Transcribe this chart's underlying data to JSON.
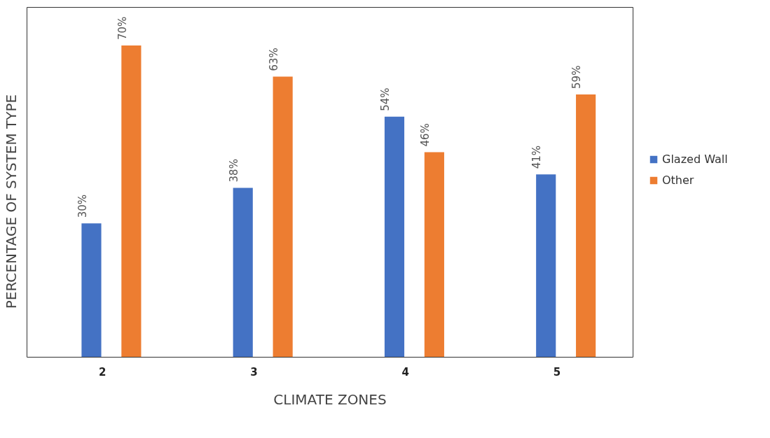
{
  "chart_data": {
    "type": "bar",
    "xlabel": "CLIMATE ZONES",
    "ylabel": "PERCENTAGE  OF SYSTEM TYPE",
    "categories": [
      "2",
      "3",
      "4",
      "5"
    ],
    "series": [
      {
        "name": "Glazed Wall",
        "color": "#4472c4",
        "values": [
          30,
          38,
          54,
          41
        ],
        "value_labels": [
          "30%",
          "38%",
          "54%",
          "41%"
        ]
      },
      {
        "name": "Other",
        "color": "#ed7d31",
        "values": [
          70,
          63,
          46,
          59
        ],
        "value_labels": [
          "70%",
          "63%",
          "46%",
          "59%"
        ]
      }
    ],
    "legend": "right",
    "tick_labels": "x",
    "grid": false
  }
}
